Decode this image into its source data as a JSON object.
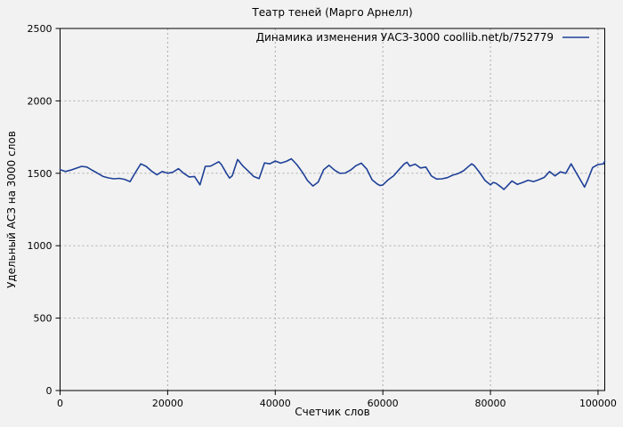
{
  "chart_data": {
    "type": "line",
    "title": "Театр теней (Марго Арнелл)",
    "xlabel": "Счетчик слов",
    "ylabel": "Удельный АСЗ на 3000 слов",
    "legend_position": "top-right-inside",
    "grid": true,
    "xlim": [
      0,
      101250
    ],
    "ylim": [
      0,
      2500
    ],
    "x_ticks": [
      0,
      20000,
      40000,
      60000,
      80000,
      100000
    ],
    "y_ticks": [
      0,
      500,
      1000,
      1500,
      2000,
      2500
    ],
    "colors": {
      "line": "#1e4097",
      "grid": "#ababab",
      "axis": "#000000",
      "background": "#f2f2f2",
      "text": "#000000"
    },
    "series": [
      {
        "name": "Динамика изменения УАСЗ-3000 coollib.net/b/752779",
        "points": [
          [
            0,
            1525
          ],
          [
            1000,
            1512
          ],
          [
            2000,
            1522
          ],
          [
            3000,
            1535
          ],
          [
            4000,
            1548
          ],
          [
            5000,
            1543
          ],
          [
            6000,
            1520
          ],
          [
            7000,
            1500
          ],
          [
            8000,
            1478
          ],
          [
            9000,
            1468
          ],
          [
            10000,
            1462
          ],
          [
            11000,
            1465
          ],
          [
            12000,
            1458
          ],
          [
            13000,
            1442
          ],
          [
            14000,
            1505
          ],
          [
            15000,
            1565
          ],
          [
            16000,
            1548
          ],
          [
            17000,
            1515
          ],
          [
            18000,
            1490
          ],
          [
            19000,
            1512
          ],
          [
            20000,
            1500
          ],
          [
            21000,
            1508
          ],
          [
            22000,
            1532
          ],
          [
            23000,
            1500
          ],
          [
            24000,
            1475
          ],
          [
            25000,
            1478
          ],
          [
            26000,
            1420
          ],
          [
            27000,
            1548
          ],
          [
            28000,
            1550
          ],
          [
            29000,
            1570
          ],
          [
            29500,
            1580
          ],
          [
            30000,
            1560
          ],
          [
            31000,
            1495
          ],
          [
            31500,
            1467
          ],
          [
            32000,
            1483
          ],
          [
            33000,
            1595
          ],
          [
            34000,
            1550
          ],
          [
            35000,
            1515
          ],
          [
            36000,
            1478
          ],
          [
            37000,
            1463
          ],
          [
            38000,
            1572
          ],
          [
            39000,
            1565
          ],
          [
            40000,
            1585
          ],
          [
            41000,
            1570
          ],
          [
            42000,
            1582
          ],
          [
            43000,
            1600
          ],
          [
            44000,
            1560
          ],
          [
            45000,
            1510
          ],
          [
            46000,
            1450
          ],
          [
            47000,
            1412
          ],
          [
            48000,
            1440
          ],
          [
            49000,
            1525
          ],
          [
            50000,
            1555
          ],
          [
            51000,
            1522
          ],
          [
            52000,
            1500
          ],
          [
            53000,
            1502
          ],
          [
            54000,
            1522
          ],
          [
            55000,
            1552
          ],
          [
            56000,
            1570
          ],
          [
            57000,
            1530
          ],
          [
            58000,
            1455
          ],
          [
            59000,
            1425
          ],
          [
            59500,
            1415
          ],
          [
            60000,
            1420
          ],
          [
            61000,
            1455
          ],
          [
            62000,
            1483
          ],
          [
            63000,
            1525
          ],
          [
            64000,
            1565
          ],
          [
            64500,
            1576
          ],
          [
            65000,
            1550
          ],
          [
            66000,
            1563
          ],
          [
            67000,
            1537
          ],
          [
            68000,
            1543
          ],
          [
            69000,
            1482
          ],
          [
            70000,
            1460
          ],
          [
            71000,
            1462
          ],
          [
            72000,
            1470
          ],
          [
            73000,
            1487
          ],
          [
            74000,
            1498
          ],
          [
            75000,
            1517
          ],
          [
            76000,
            1550
          ],
          [
            76500,
            1565
          ],
          [
            77000,
            1553
          ],
          [
            78000,
            1505
          ],
          [
            79000,
            1450
          ],
          [
            80000,
            1420
          ],
          [
            80500,
            1437
          ],
          [
            81000,
            1432
          ],
          [
            82000,
            1405
          ],
          [
            82500,
            1388
          ],
          [
            83000,
            1408
          ],
          [
            84000,
            1447
          ],
          [
            85000,
            1423
          ],
          [
            86000,
            1437
          ],
          [
            87000,
            1452
          ],
          [
            88000,
            1443
          ],
          [
            89000,
            1456
          ],
          [
            90000,
            1472
          ],
          [
            91000,
            1512
          ],
          [
            92000,
            1482
          ],
          [
            93000,
            1510
          ],
          [
            94000,
            1500
          ],
          [
            95000,
            1565
          ],
          [
            96000,
            1500
          ],
          [
            97000,
            1437
          ],
          [
            97500,
            1405
          ],
          [
            98000,
            1447
          ],
          [
            99000,
            1540
          ],
          [
            100000,
            1560
          ],
          [
            101000,
            1565
          ],
          [
            101250,
            1583
          ]
        ]
      }
    ]
  }
}
